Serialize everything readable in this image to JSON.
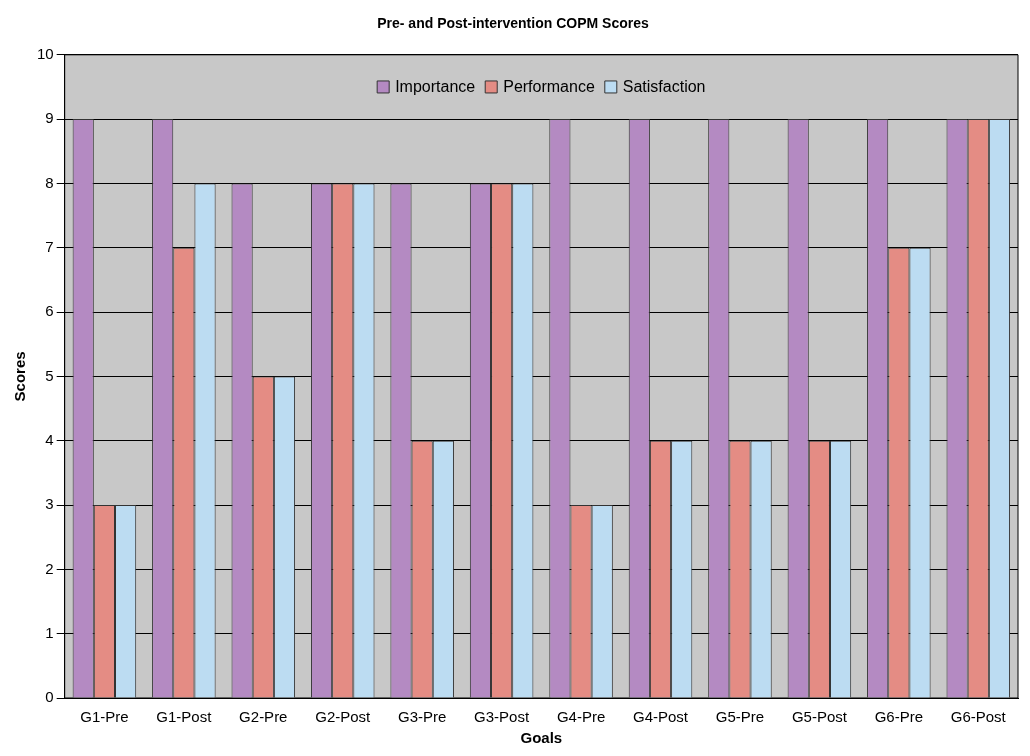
{
  "chart_data": {
    "type": "bar",
    "title": "Pre- and Post-intervention COPM Scores",
    "xlabel": "Goals",
    "ylabel": "Scores",
    "categories": [
      "G1-Pre",
      "G1-Post",
      "G2-Pre",
      "G2-Post",
      "G3-Pre",
      "G3-Post",
      "G4-Pre",
      "G4-Post",
      "G5-Pre",
      "G5-Post",
      "G6-Pre",
      "G6-Post"
    ],
    "series": [
      {
        "name": "Importance",
        "color": "#b48ac2",
        "values": [
          9,
          9,
          8,
          8,
          8,
          8,
          9,
          9,
          9,
          9,
          9,
          9
        ]
      },
      {
        "name": "Performance",
        "color": "#e48c84",
        "values": [
          3,
          7,
          5,
          8,
          4,
          8,
          3,
          4,
          4,
          4,
          7,
          9
        ]
      },
      {
        "name": "Satisfaction",
        "color": "#bcdcf2",
        "values": [
          3,
          8,
          5,
          8,
          4,
          8,
          3,
          4,
          4,
          4,
          7,
          9
        ]
      }
    ],
    "ylim": [
      0,
      10
    ],
    "yticks": [
      0,
      1,
      2,
      3,
      4,
      5,
      6,
      7,
      8,
      9,
      10
    ],
    "grid": "y",
    "legend": "top"
  }
}
